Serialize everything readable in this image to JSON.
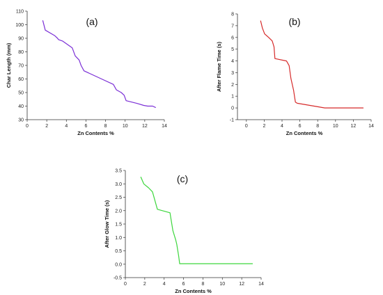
{
  "chart_data": [
    {
      "type": "line",
      "panel_label": "(a)",
      "xlabel": "Zn Contents %",
      "ylabel": "Char Length (mm)",
      "xlim": [
        0,
        14
      ],
      "ylim": [
        30,
        110
      ],
      "xticks": [
        0,
        2,
        4,
        6,
        8,
        10,
        12,
        14
      ],
      "yticks": [
        30,
        40,
        50,
        60,
        70,
        80,
        90,
        100,
        110
      ],
      "grid": false,
      "series": [
        {
          "color": "#7B2FD6",
          "x": [
            1.6,
            1.85,
            2.8,
            3.1,
            3.2,
            3.6,
            4.6,
            4.9,
            5.3,
            5.4,
            5.5,
            5.8,
            7.6,
            8.8,
            9.1,
            9.6,
            9.9,
            10.1,
            11.2,
            11.9,
            12.3,
            12.8,
            13.1
          ],
          "y": [
            103,
            96,
            92,
            90,
            89,
            88,
            83,
            77,
            74,
            72,
            70,
            66,
            60,
            56,
            52,
            50,
            48,
            44,
            42,
            40.5,
            40,
            40,
            39
          ]
        }
      ]
    },
    {
      "type": "line",
      "panel_label": "(b)",
      "xlabel": "Zn Contents %",
      "ylabel": "After Flame Time (s)",
      "xlim": [
        -1,
        14
      ],
      "ylim": [
        -1,
        8
      ],
      "xticks": [
        0,
        2,
        4,
        6,
        8,
        10,
        12,
        14
      ],
      "yticks": [
        -1,
        0,
        1,
        2,
        3,
        4,
        5,
        6,
        7,
        8
      ],
      "grid": false,
      "series": [
        {
          "color": "#D62A2A",
          "x": [
            1.6,
            1.8,
            2.05,
            2.5,
            2.9,
            3.1,
            3.2,
            4.5,
            4.8,
            5.0,
            5.3,
            5.5,
            5.7,
            8.8,
            13.1
          ],
          "y": [
            7.4,
            6.8,
            6.3,
            6.0,
            5.7,
            5.2,
            4.2,
            4.0,
            3.6,
            2.5,
            1.5,
            0.5,
            0.4,
            0.0,
            0.0
          ]
        }
      ]
    },
    {
      "type": "line",
      "panel_label": "(c)",
      "xlabel": "Zn Contents %",
      "ylabel": "After Glow Time (s)",
      "xlim": [
        0,
        14
      ],
      "ylim": [
        -0.5,
        3.5
      ],
      "xticks": [
        0,
        2,
        4,
        6,
        8,
        10,
        12,
        14
      ],
      "yticks": [
        -0.5,
        0.0,
        0.5,
        1.0,
        1.5,
        2.0,
        2.5,
        3.0,
        3.5
      ],
      "ytick_format": "0.0",
      "grid": false,
      "series": [
        {
          "color": "#3CD63C",
          "x": [
            1.6,
            1.9,
            2.4,
            2.8,
            3.3,
            4.6,
            4.9,
            5.2,
            5.3,
            5.5,
            5.6,
            13.1
          ],
          "y": [
            3.25,
            3.0,
            2.85,
            2.7,
            2.05,
            1.92,
            1.25,
            0.9,
            0.75,
            0.3,
            0.02,
            0.02
          ]
        }
      ]
    }
  ]
}
